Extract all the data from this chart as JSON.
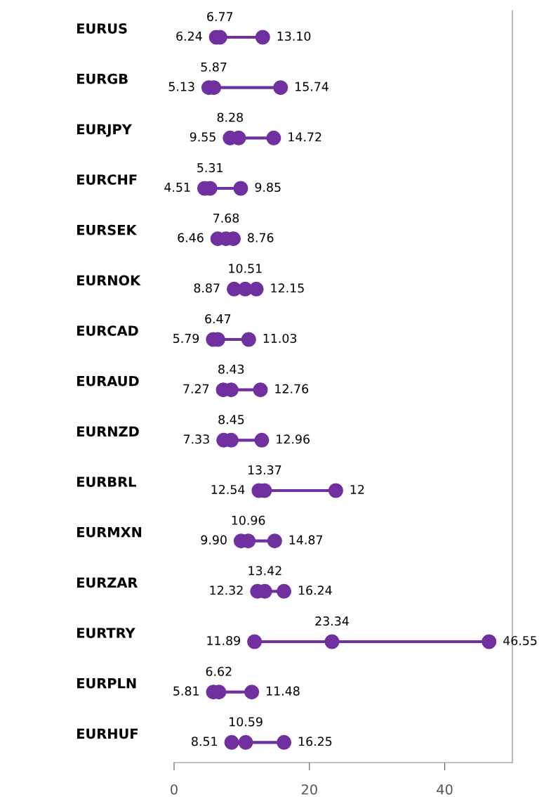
{
  "chart_data": {
    "type": "scatter",
    "orientation": "horizontal",
    "categories": [
      "EURUS",
      "EURGB",
      "EURJPY",
      "EURCHF",
      "EURSEK",
      "EURNOK",
      "EURCAD",
      "EURAUD",
      "EURNZD",
      "EURBRL",
      "EURMXN",
      "EURZAR",
      "EURTRY",
      "EURPLN",
      "EURHUF"
    ],
    "series": [
      {
        "color": "#7030a0",
        "values": [
          6.24,
          5.13,
          9.55,
          4.51,
          6.46,
          8.87,
          5.79,
          7.27,
          7.33,
          12.54,
          9.9,
          12.32,
          11.89,
          5.81,
          8.51
        ],
        "value_labels": [
          "6.24",
          "5.13",
          "9.55",
          "4.51",
          "6.46",
          "8.87",
          "5.79",
          "7.27",
          "7.33",
          "12.54",
          "9.90",
          "12.32",
          "11.89",
          "5.81",
          "8.51"
        ]
      },
      {
        "color": "#7030a0",
        "values": [
          6.77,
          5.87,
          8.28,
          5.31,
          7.68,
          10.51,
          6.47,
          8.43,
          8.45,
          13.37,
          10.96,
          13.42,
          23.34,
          6.62,
          10.59
        ],
        "value_labels": [
          "6.77",
          "5.87",
          "8.28",
          "5.31",
          "7.68",
          "10.51",
          "6.47",
          "8.43",
          "8.45",
          "13.37",
          "10.96",
          "13.42",
          "23.34",
          "6.62",
          "10.59"
        ]
      },
      {
        "color": "#7030a0",
        "values": [
          13.1,
          15.74,
          14.72,
          9.85,
          8.76,
          12.15,
          11.03,
          12.76,
          12.96,
          23.9,
          14.87,
          16.24,
          46.55,
          11.48,
          16.25
        ],
        "value_labels": [
          "13.10",
          "15.74",
          "14.72",
          "9.85",
          "8.76",
          "12.15",
          "11.03",
          "12.76",
          "12.96",
          null,
          "14.87",
          "16.24",
          "46.55",
          "11.48",
          "16.25"
        ]
      }
    ],
    "annotations": [
      {
        "text": "12",
        "x": 23.9,
        "y": "EURBRL"
      }
    ],
    "xlim": [
      0,
      50
    ],
    "xticks": [
      0,
      20,
      40
    ],
    "marker": "circle",
    "grid": false,
    "legend": false
  }
}
